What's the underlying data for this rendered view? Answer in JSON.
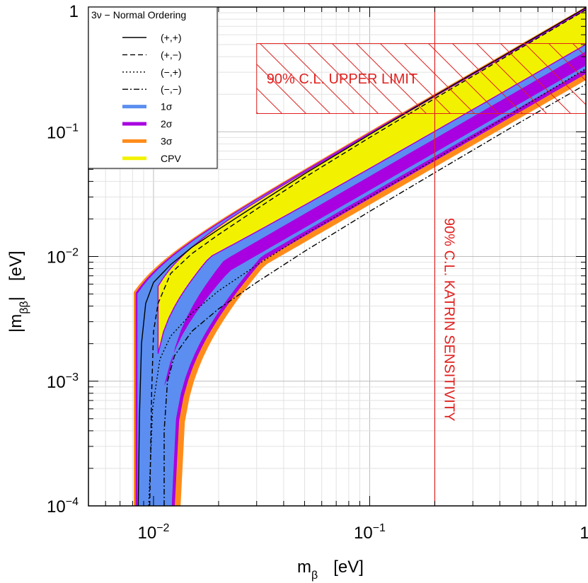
{
  "chart_data": {
    "type": "area",
    "title": "",
    "xlabel": {
      "main": "m",
      "sub": "β",
      "unit": "[eV]"
    },
    "ylabel": {
      "main": "|m",
      "sub": "ββ",
      "tail": "|",
      "unit": "[eV]"
    },
    "x_scale": "log",
    "y_scale": "log",
    "xlim": [
      0.005,
      1
    ],
    "ylim": [
      0.0001,
      1
    ],
    "grid": true,
    "x_ticks": [
      {
        "value": 0.01,
        "base": "10",
        "exp": "−2"
      },
      {
        "value": 0.1,
        "base": "10",
        "exp": "−1"
      },
      {
        "value": 1,
        "base": "1",
        "exp": ""
      }
    ],
    "y_ticks": [
      {
        "value": 0.0001,
        "base": "10",
        "exp": "−4"
      },
      {
        "value": 0.001,
        "base": "10",
        "exp": "−3"
      },
      {
        "value": 0.01,
        "base": "10",
        "exp": "−2"
      },
      {
        "value": 0.1,
        "base": "10",
        "exp": "−1"
      },
      {
        "value": 1,
        "base": "1",
        "exp": ""
      }
    ],
    "legend": {
      "placement": "top-left",
      "title": "3ν − Normal Ordering",
      "entries": [
        {
          "label": "(+,+)",
          "kind": "line",
          "dash": "solid",
          "color": "#000000"
        },
        {
          "label": "(+,−)",
          "kind": "line",
          "dash": "dashed",
          "color": "#000000"
        },
        {
          "label": "(−,+)",
          "kind": "line",
          "dash": "dotted",
          "color": "#000000"
        },
        {
          "label": "(−,−)",
          "kind": "line",
          "dash": "dashdot",
          "color": "#000000"
        },
        {
          "label": "1σ",
          "kind": "band",
          "color": "#5b8ef0"
        },
        {
          "label": "2σ",
          "kind": "band",
          "color": "#a800e0"
        },
        {
          "label": "3σ",
          "kind": "band",
          "color": "#ff8c1a"
        },
        {
          "label": "CPV",
          "kind": "band",
          "color": "#f2f200"
        }
      ]
    },
    "band_envelope": {
      "mbeta_min": 0.0081,
      "upper": {
        "offset": 0.0081,
        "slope": 0.97
      },
      "lower": {
        "mbeta_at_floor": 0.0125,
        "knee_offset": 0.0118,
        "slope": 0.26
      }
    },
    "series": [
      {
        "name": "(+,+)",
        "dash": "solid",
        "points": [
          [
            0.0085,
            0.0001
          ],
          [
            0.0086,
            0.0005
          ],
          [
            0.0088,
            0.002
          ],
          [
            0.0092,
            0.0042
          ],
          [
            0.01,
            0.0062
          ],
          [
            0.012,
            0.0086
          ],
          [
            0.015,
            0.0118
          ],
          [
            0.02,
            0.0165
          ],
          [
            0.03,
            0.026
          ],
          [
            0.05,
            0.046
          ],
          [
            0.1,
            0.095
          ],
          [
            0.2,
            0.195
          ],
          [
            0.5,
            0.49
          ],
          [
            1,
            0.99
          ]
        ]
      },
      {
        "name": "(+,−)",
        "dash": "dashed",
        "points": [
          [
            0.0096,
            0.0001
          ],
          [
            0.0098,
            0.0008
          ],
          [
            0.01,
            0.0025
          ],
          [
            0.0105,
            0.0042
          ],
          [
            0.012,
            0.0073
          ],
          [
            0.015,
            0.0105
          ],
          [
            0.02,
            0.015
          ],
          [
            0.03,
            0.024
          ],
          [
            0.05,
            0.043
          ],
          [
            0.1,
            0.09
          ],
          [
            0.2,
            0.185
          ],
          [
            0.5,
            0.47
          ],
          [
            1,
            0.95
          ]
        ]
      },
      {
        "name": "(−,+)",
        "dash": "dotted",
        "points": [
          [
            0.0095,
            0.0001
          ],
          [
            0.0099,
            0.0006
          ],
          [
            0.0107,
            0.0015
          ],
          [
            0.012,
            0.0023
          ],
          [
            0.015,
            0.0035
          ],
          [
            0.02,
            0.0053
          ],
          [
            0.03,
            0.0085
          ],
          [
            0.05,
            0.015
          ],
          [
            0.1,
            0.03
          ],
          [
            0.2,
            0.06
          ],
          [
            0.5,
            0.155
          ],
          [
            1,
            0.32
          ]
        ]
      },
      {
        "name": "(−,−)",
        "dash": "dashdot",
        "points": [
          [
            0.0112,
            0.0001
          ],
          [
            0.0112,
            0.0004
          ],
          [
            0.0116,
            0.001
          ],
          [
            0.0125,
            0.0016
          ],
          [
            0.015,
            0.0025
          ],
          [
            0.02,
            0.0038
          ],
          [
            0.03,
            0.0062
          ],
          [
            0.05,
            0.011
          ],
          [
            0.1,
            0.023
          ],
          [
            0.2,
            0.047
          ],
          [
            0.5,
            0.12
          ],
          [
            1,
            0.24
          ]
        ]
      }
    ],
    "annotations": {
      "upper_limit": {
        "label": "90% C.L. UPPER LIMIT",
        "y_range": [
          0.14,
          0.51
        ],
        "x_from": 0.03,
        "color": "#e0211f"
      },
      "katrin": {
        "label": "90% C.L. KATRIN SENSITIVITY",
        "x": 0.2,
        "color": "#e0211f"
      }
    }
  }
}
